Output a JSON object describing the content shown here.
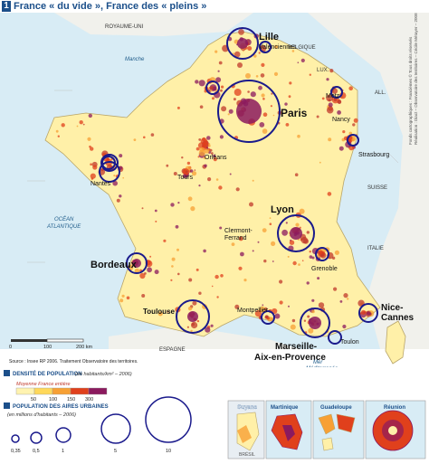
{
  "title": {
    "number": "1",
    "text": "France « du vide », France des « pleins »"
  },
  "credit": [
    "Fonds cartographiques : Francièmes © Tous droits réservés",
    "Réalisation : Diact – Observatoire des territoires – Cécile Métayer – 2008"
  ],
  "cities": {
    "lille": "Lille",
    "valenciennes": "Valenciennes",
    "paris": "Paris",
    "orleans": "Orléans",
    "tours": "Tours",
    "nantes": "Nantes",
    "metz": "Metz",
    "nancy": "Nancy",
    "strasbourg": "Strasbourg",
    "lyon": "Lyon",
    "clermont": "Clermont-\nFerrand",
    "grenoble": "Grenoble",
    "bordeaux": "Bordeaux",
    "toulouse": "Toulouse",
    "montpellier": "Montpellier",
    "nice_cannes": "Nice-\nCannes",
    "marseille": "Marseille-\nAix-en-Provence",
    "toulon": "Toulon"
  },
  "places": {
    "uk": "ROYAUME-UNI",
    "belgique": "BELGIQUE",
    "lux": "LUX.",
    "all": "ALL.",
    "suisse": "SUISSE",
    "italie": "ITALIE",
    "espagne": "ESPAGNE",
    "manche": "Manche",
    "ocean": "OCÉAN\nATLANTIQUE",
    "mer": "Mer\nMéditerranée",
    "source": "Source : Insee RP 2006. Traitement Observatoire des territoires."
  },
  "scale": {
    "zero": "0",
    "mid": "100",
    "end": "200 km"
  },
  "legend": {
    "density_title": "DENSITÉ DE POPULATION",
    "density_unit": "(en habitants/km² – 2006)",
    "average_label": "Moyenne France entière",
    "density_ticks": [
      "50",
      "100",
      "150",
      "300"
    ],
    "density_colors": [
      "#fff3b0",
      "#ffd85a",
      "#f7a034",
      "#e0401c",
      "#8b1a5e"
    ],
    "pop_title": "POPULATION DES AIRES URBAINES",
    "pop_unit": "(en millions d'habitants – 2006)",
    "pop_ticks": [
      "0,35",
      "0,5",
      "1",
      "5",
      "10"
    ]
  },
  "insets": [
    {
      "name": "Guyane",
      "note": "BRÉSIL"
    },
    {
      "name": "Martinique",
      "note": ""
    },
    {
      "name": "Guadeloupe",
      "note": ""
    },
    {
      "name": "Réunion",
      "note": ""
    }
  ],
  "colors": {
    "land": "#fff0a8",
    "sea": "#d8ecf5",
    "circle": "#1a1a8c",
    "dense": "#8b1a5e",
    "hot": "#e0401c"
  }
}
